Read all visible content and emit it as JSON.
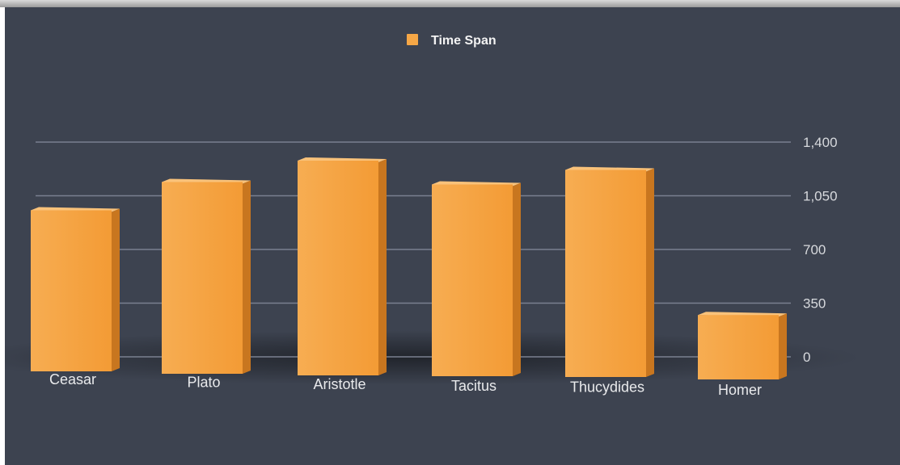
{
  "chart_data": {
    "type": "bar",
    "categories": [
      "Ceasar",
      "Plato",
      "Aristotle",
      "Tacitus",
      "Thucydides",
      "Homer"
    ],
    "series": [
      {
        "name": "Time Span",
        "values": [
          1050,
          1250,
          1400,
          1250,
          1350,
          420
        ]
      }
    ],
    "y_ticks": [
      "0",
      "350",
      "700",
      "1,050",
      "1,400"
    ],
    "y_tick_values": [
      0,
      350,
      700,
      1050,
      1400
    ],
    "ylim": [
      0,
      1400
    ],
    "title": "",
    "xlabel": "",
    "ylabel": "",
    "legend_position": "top-center",
    "grid": true,
    "y_axis_side": "right",
    "colors": {
      "bar": "#f6a746",
      "bar_side": "#c8761f",
      "background": "#3d4350",
      "grid": "#7a8090"
    }
  }
}
